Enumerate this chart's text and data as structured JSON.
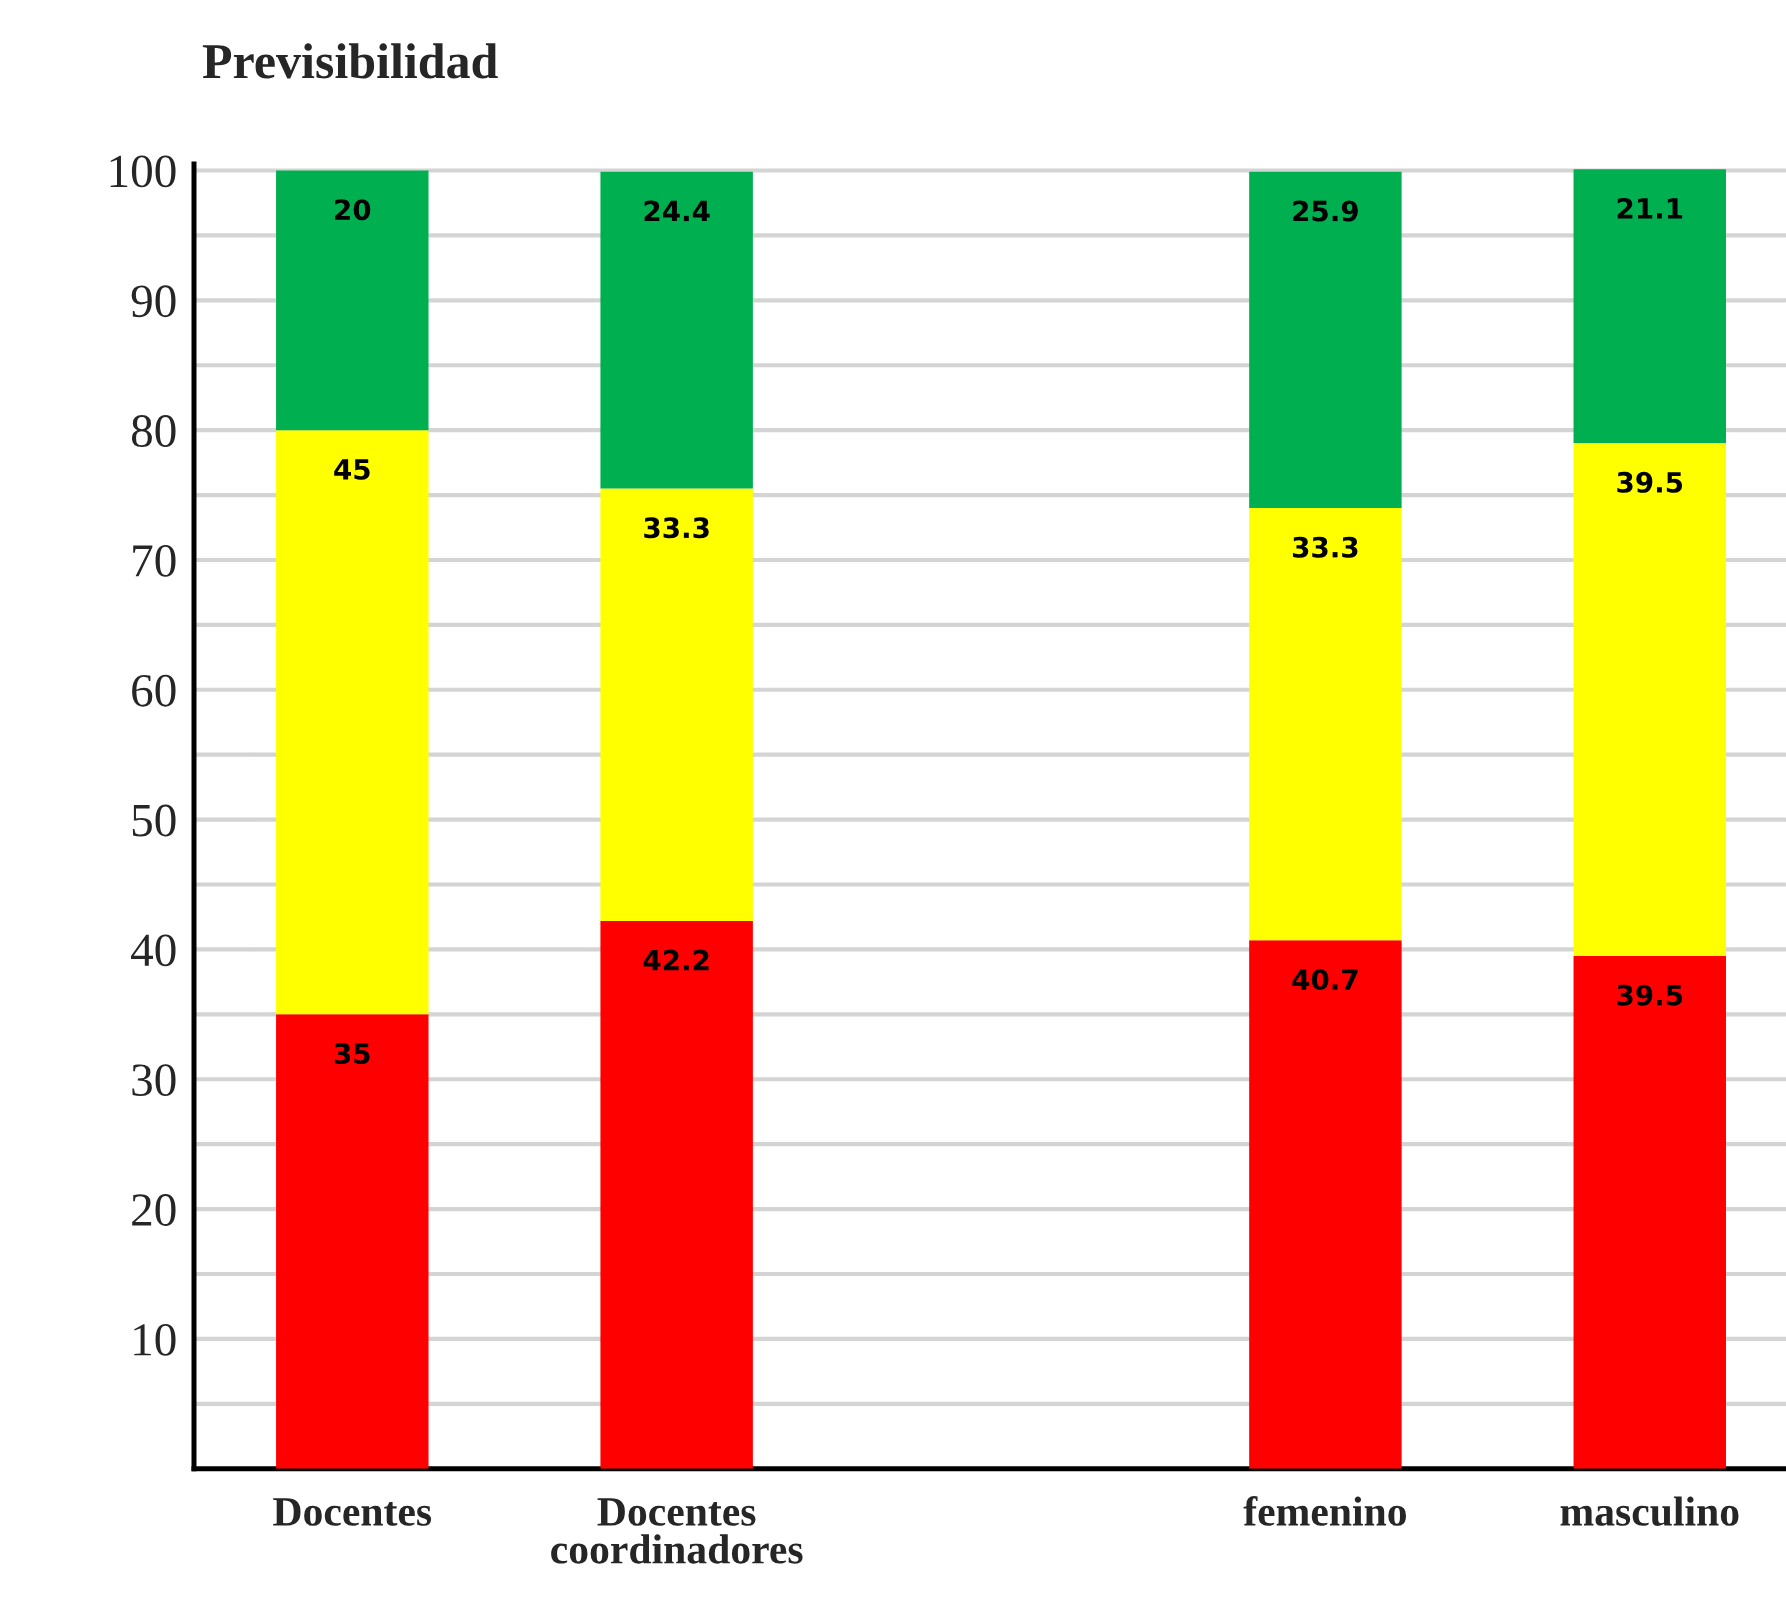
{
  "chart_data": {
    "type": "bar",
    "title": "Previsibilidad",
    "categories": [
      "Docentes",
      "Docentes coordinadores",
      null,
      "femenino",
      "masculino"
    ],
    "stacked": true,
    "series": [
      {
        "color": "#ff0000",
        "values": [
          35,
          42.2,
          null,
          40.7,
          39.5
        ]
      },
      {
        "color": "#ffff00",
        "values": [
          45,
          33.3,
          null,
          33.3,
          39.5
        ]
      },
      {
        "color": "#00b050",
        "values": [
          20,
          24.4,
          null,
          25.9,
          21.1
        ]
      }
    ],
    "ylim": [
      0,
      100.5
    ],
    "yticks": [
      {
        "value": 5,
        "label": null
      },
      10,
      {
        "value": 15,
        "label": null
      },
      20,
      {
        "value": 25,
        "label": null
      },
      30,
      {
        "value": 35,
        "label": null
      },
      40,
      {
        "value": 45,
        "label": null
      },
      50,
      {
        "value": 55,
        "label": null
      },
      60,
      {
        "value": 65,
        "label": null
      },
      70,
      {
        "value": 75,
        "label": null
      },
      80,
      {
        "value": 85,
        "label": null
      },
      90,
      {
        "value": 95,
        "label": null
      },
      100
    ],
    "grid": "y",
    "data_labels": true
  }
}
